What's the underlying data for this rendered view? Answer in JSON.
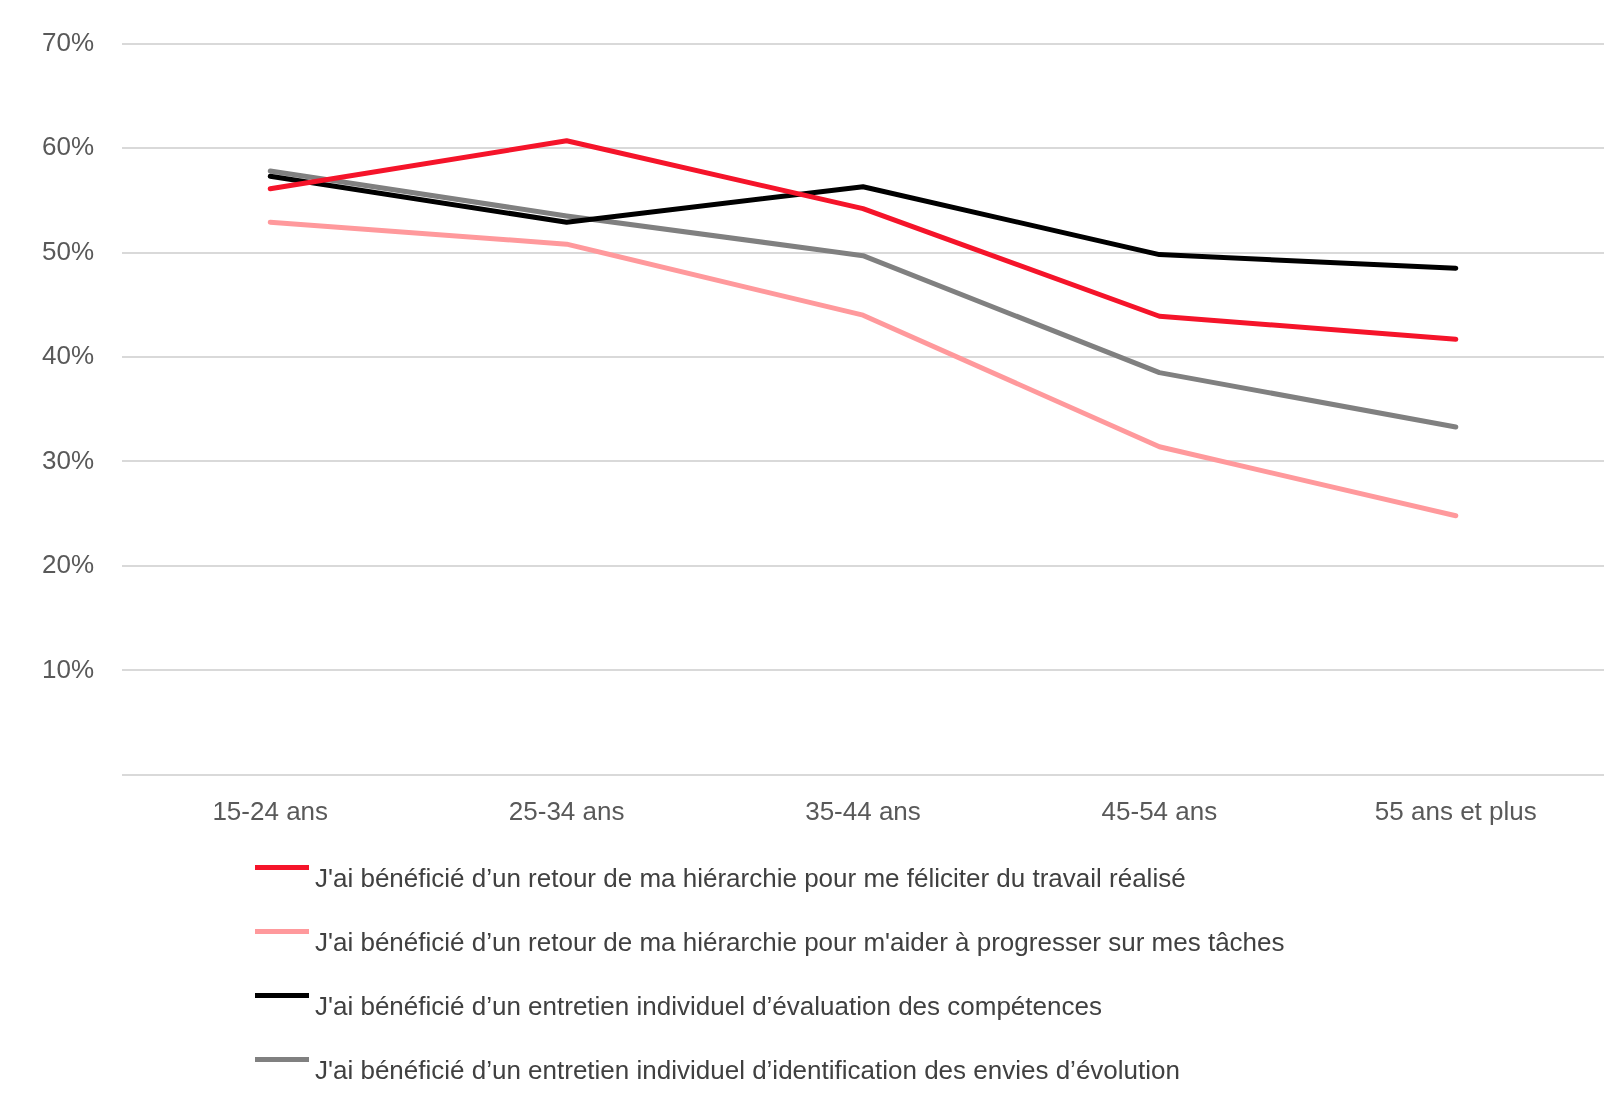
{
  "chart_data": {
    "type": "line",
    "categories": [
      "15-24 ans",
      "25-34 ans",
      "35-44 ans",
      "45-54 ans",
      "55 ans et plus"
    ],
    "series": [
      {
        "name": "J'ai bénéficié d’un retour de ma hiérarchie pour me féliciter du travail réalisé",
        "color": "#f5142a",
        "values": [
          56.1,
          60.7,
          54.2,
          43.9,
          41.7
        ]
      },
      {
        "name": "J'ai bénéficié d’un retour de ma hiérarchie pour m'aider à progresser sur mes tâches",
        "color": "#ff999c",
        "values": [
          52.9,
          50.8,
          44.0,
          31.4,
          24.8
        ]
      },
      {
        "name": "J'ai bénéficié d’un entretien individuel d’évaluation des compétences",
        "color": "#000000",
        "values": [
          57.3,
          52.9,
          56.3,
          49.8,
          48.5
        ]
      },
      {
        "name": "J'ai bénéficié d’un entretien individuel d’identification des envies d’évolution",
        "color": "#808080",
        "values": [
          57.8,
          53.5,
          49.7,
          38.5,
          33.3
        ]
      }
    ],
    "ylim": [
      0,
      70
    ],
    "yticks": [
      {
        "value": 0,
        "label": null
      },
      {
        "value": 10,
        "label": "10%"
      },
      {
        "value": 20,
        "label": "20%"
      },
      {
        "value": 30,
        "label": "30%"
      },
      {
        "value": 40,
        "label": "40%"
      },
      {
        "value": 50,
        "label": "50%"
      },
      {
        "value": 60,
        "label": "60%"
      },
      {
        "value": 70,
        "label": "70%"
      }
    ],
    "grid": "y",
    "legend": "bottom",
    "marker": "none",
    "line_style": "solid"
  }
}
